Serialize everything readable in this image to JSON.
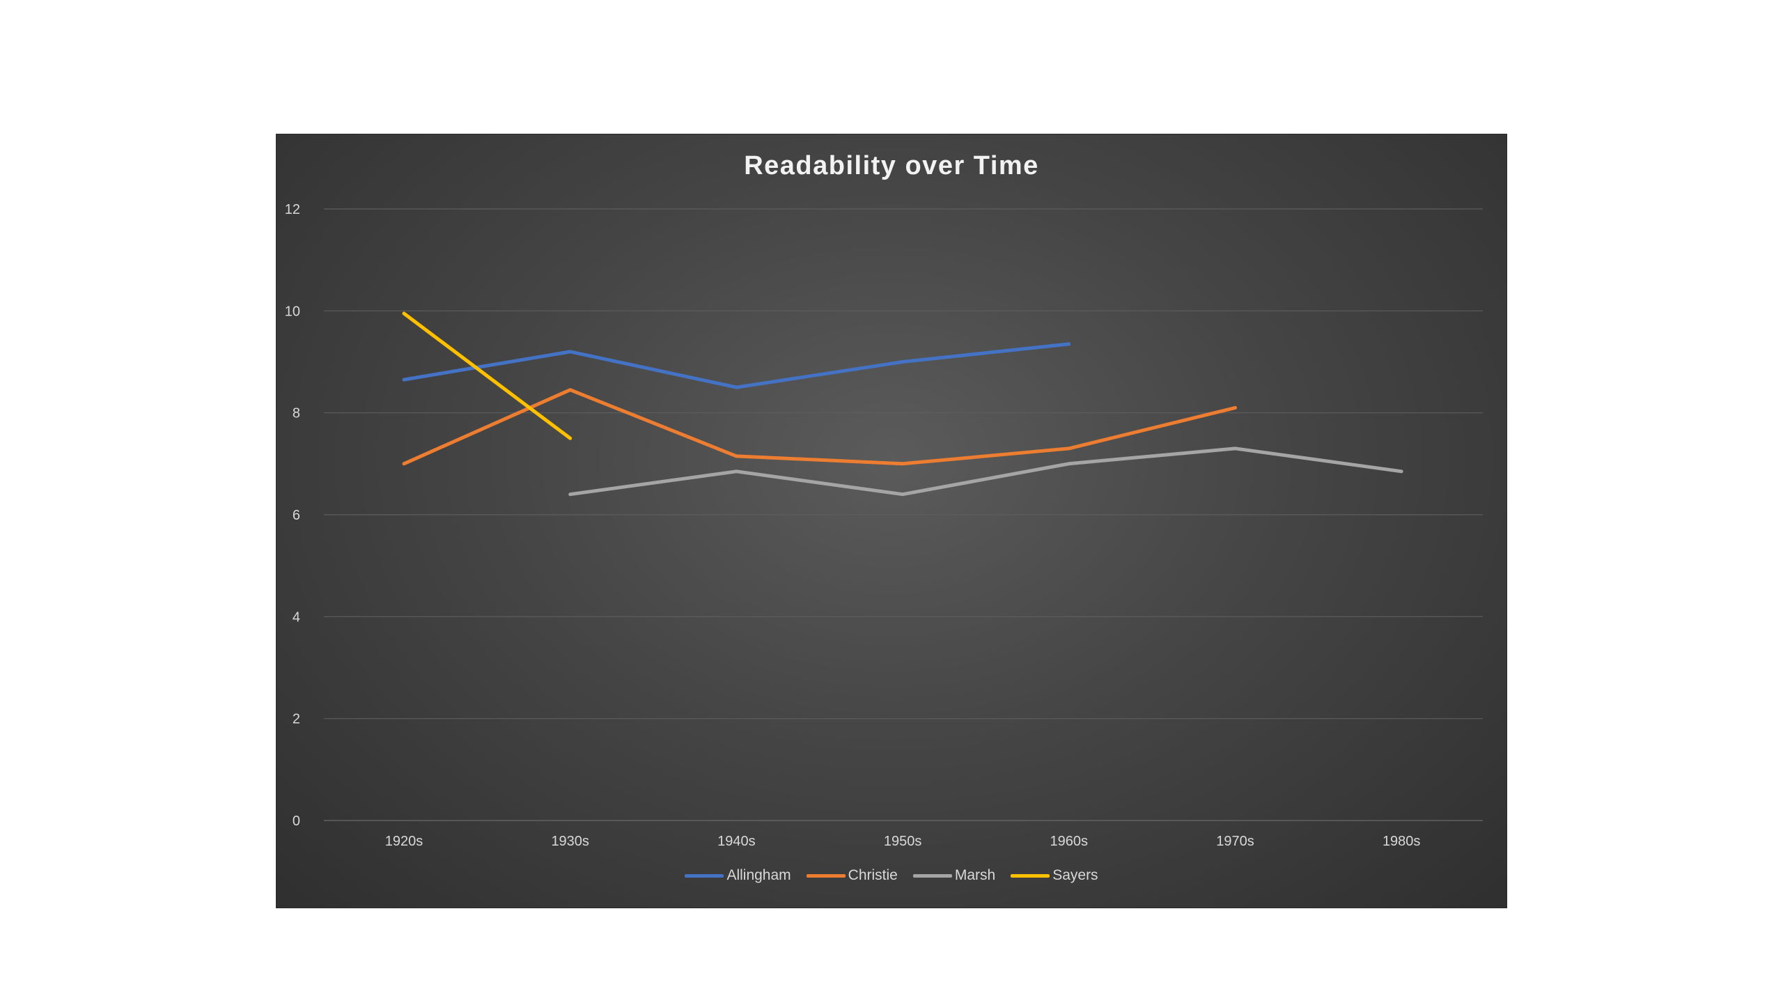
{
  "chart_data": {
    "type": "line",
    "title": "Readability over Time",
    "xlabel": "",
    "ylabel": "",
    "categories": [
      "1920s",
      "1930s",
      "1940s",
      "1950s",
      "1960s",
      "1970s",
      "1980s"
    ],
    "ylim": [
      0,
      12
    ],
    "yticks": [
      "0",
      "2",
      "4",
      "6",
      "8",
      "10",
      "12"
    ],
    "grid": "horizontal",
    "legend": "bottom",
    "series": [
      {
        "name": "Allingham",
        "color": "#4472c4",
        "values": [
          8.65,
          9.2,
          8.5,
          9.0,
          9.35,
          null,
          null
        ]
      },
      {
        "name": "Christie",
        "color": "#ed7d31",
        "values": [
          7.0,
          8.45,
          7.15,
          7.0,
          7.3,
          8.1,
          null
        ]
      },
      {
        "name": "Marsh",
        "color": "#a5a5a5",
        "values": [
          null,
          6.4,
          6.85,
          6.4,
          7.0,
          7.3,
          6.85
        ]
      },
      {
        "name": "Sayers",
        "color": "#ffc000",
        "values": [
          9.95,
          7.5,
          null,
          null,
          null,
          null,
          null
        ]
      }
    ]
  }
}
